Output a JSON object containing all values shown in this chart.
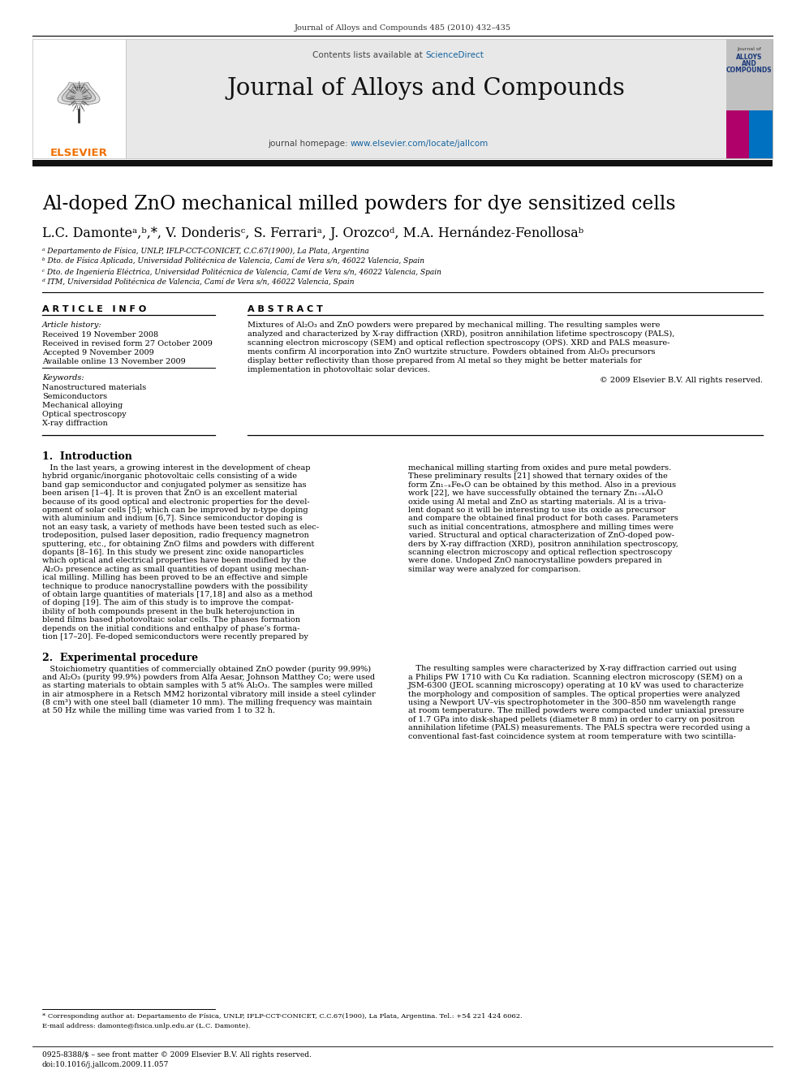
{
  "journal_ref": "Journal of Alloys and Compounds 485 (2010) 432–435",
  "journal_name": "Journal of Alloys and Compounds",
  "contents_text": "Contents lists available at ",
  "sciencedirect": "ScienceDirect",
  "homepage_label": "journal homepage: ",
  "homepage_url": "www.elsevier.com/locate/jallcom",
  "elsevier_text": "ELSEVIER",
  "title": "Al-doped ZnO mechanical milled powders for dye sensitized cells",
  "authors_line": "L.C. Damonteᵃ,ᵇ,*, V. Donderisᶜ, S. Ferrariᵃ, J. Orozcoᵈ, M.A. Hernández-Fenollosaᵇ",
  "affil_a": "ᵃ Departamento de Física, UNLP, IFLP-CCT-CONICET, C.C.67(1900), La Plata, Argentina",
  "affil_b": "ᵇ Dto. de Física Aplicada, Universidad Politécnica de Valencia, Camí de Vera s/n, 46022 Valencia, Spain",
  "affil_c": "ᶜ Dto. de Ingeniería Eléctrica, Universidad Politécnica de Valencia, Camí de Vera s/n, 46022 Valencia, Spain",
  "affil_d": "ᵈ ITM, Universidad Politécnica de Valencia, Camí de Vera s/n, 46022 Valencia, Spain",
  "article_info_header": "A R T I C L E   I N F O",
  "abstract_header": "A B S T R A C T",
  "article_history_label": "Article history:",
  "received": "Received 19 November 2008",
  "revised": "Received in revised form 27 October 2009",
  "accepted": "Accepted 9 November 2009",
  "available": "Available online 13 November 2009",
  "keywords_label": "Keywords:",
  "keyword1": "Nanostructured materials",
  "keyword2": "Semiconductors",
  "keyword3": "Mechanical alloying",
  "keyword4": "Optical spectroscopy",
  "keyword5": "X-ray diffraction",
  "abstract_lines": [
    "Mixtures of Al₂O₃ and ZnO powders were prepared by mechanical milling. The resulting samples were",
    "analyzed and characterized by X-ray diffraction (XRD), positron annihilation lifetime spectroscopy (PALS),",
    "scanning electron microscopy (SEM) and optical reflection spectroscopy (OPS). XRD and PALS measure-",
    "ments confirm Al incorporation into ZnO wurtzite structure. Powders obtained from Al₂O₃ precursors",
    "display better reflectivity than those prepared from Al metal so they might be better materials for",
    "implementation in photovoltaic solar devices."
  ],
  "copyright": "© 2009 Elsevier B.V. All rights reserved.",
  "intro_header": "1.  Introduction",
  "intro_col1_lines": [
    "   In the last years, a growing interest in the development of cheap",
    "hybrid organic/inorganic photovoltaic cells consisting of a wide",
    "band gap semiconductor and conjugated polymer as sensitize has",
    "been arisen [1–4]. It is proven that ZnO is an excellent material",
    "because of its good optical and electronic properties for the devel-",
    "opment of solar cells [5]; which can be improved by n-type doping",
    "with aluminium and indium [6,7]. Since semiconductor doping is",
    "not an easy task, a variety of methods have been tested such as elec-",
    "trodeposition, pulsed laser deposition, radio frequency magnetron",
    "sputtering, etc., for obtaining ZnO films and powders with different",
    "dopants [8–16]. In this study we present zinc oxide nanoparticles",
    "which optical and electrical properties have been modified by the",
    "Al₂O₃ presence acting as small quantities of dopant using mechan-",
    "ical milling. Milling has been proved to be an effective and simple",
    "technique to produce nanocrystalline powders with the possibility",
    "of obtain large quantities of materials [17,18] and also as a method",
    "of doping [19]. The aim of this study is to improve the compat-",
    "ibility of both compounds present in the bulk heterojunction in",
    "blend films based photovoltaic solar cells. The phases formation",
    "depends on the initial conditions and enthalpy of phase’s forma-",
    "tion [17–20]. Fe-doped semiconductors were recently prepared by"
  ],
  "intro_col2_lines": [
    "mechanical milling starting from oxides and pure metal powders.",
    "These preliminary results [21] showed that ternary oxides of the",
    "form Zn₁₋ₓFeₓO can be obtained by this method. Also in a previous",
    "work [22], we have successfully obtained the ternary Zn₁₋ₓAlₓO",
    "oxide using Al metal and ZnO as starting materials. Al is a triva-",
    "lent dopant so it will be interesting to use its oxide as precursor",
    "and compare the obtained final product for both cases. Parameters",
    "such as initial concentrations, atmosphere and milling times were",
    "varied. Structural and optical characterization of ZnO-doped pow-",
    "ders by X-ray diffraction (XRD), positron annihilation spectroscopy,",
    "scanning electron microscopy and optical reflection spectroscopy",
    "were done. Undoped ZnO nanocrystalline powders prepared in",
    "similar way were analyzed for comparison."
  ],
  "sec2_header": "2.  Experimental procedure",
  "sec2_col1_lines": [
    "   Stoichiometry quantities of commercially obtained ZnO powder (purity 99.99%)",
    "and Al₂O₃ (purity 99.9%) powders from Alfa Aesar, Johnson Matthey Co; were used",
    "as starting materials to obtain samples with 5 at% Al₂O₃. The samples were milled",
    "in air atmosphere in a Retsch MM2 horizontal vibratory mill inside a steel cylinder",
    "(8 cm³) with one steel ball (diameter 10 mm). The milling frequency was maintain",
    "at 50 Hz while the milling time was varied from 1 to 32 h."
  ],
  "sec2_col2_lines": [
    "   The resulting samples were characterized by X-ray diffraction carried out using",
    "a Philips PW 1710 with Cu Kα radiation. Scanning electron microscopy (SEM) on a",
    "JSM-6300 (JEOL scanning microscopy) operating at 10 kV was used to characterize",
    "the morphology and composition of samples. The optical properties were analyzed",
    "using a Newport UV–vis spectrophotometer in the 300–850 nm wavelength range",
    "at room temperature. The milled powders were compacted under uniaxial pressure",
    "of 1.7 GPa into disk-shaped pellets (diameter 8 mm) in order to carry on positron",
    "annihilation lifetime (PALS) measurements. The PALS spectra were recorded using a",
    "conventional fast-fast coincidence system at room temperature with two scintilla-"
  ],
  "footnote_star": "* Corresponding author at: Departamento de Física, UNLP, IFLP-CCT-CONICET, C.C.67(1900), La Plata, Argentina. Tel.: +54 221 424 6062.",
  "footnote_email": "E-mail address: damonte@fisica.unlp.edu.ar (L.C. Damonte).",
  "bottom_issn": "0925-8388/$ – see front matter © 2009 Elsevier B.V. All rights reserved.",
  "bottom_doi": "doi:10.1016/j.jallcom.2009.11.057",
  "elsevier_orange": "#f07000",
  "sciencedirect_blue": "#1464a0",
  "homepage_blue": "#1464a0",
  "header_bg": "#e8e8e8",
  "dark_bar": "#111111",
  "cover_magenta": "#b0006a",
  "cover_blue": "#0070c0",
  "cover_gray": "#c8c8c8",
  "bg_color": "#ffffff",
  "text_black": "#000000",
  "text_dark": "#222222"
}
